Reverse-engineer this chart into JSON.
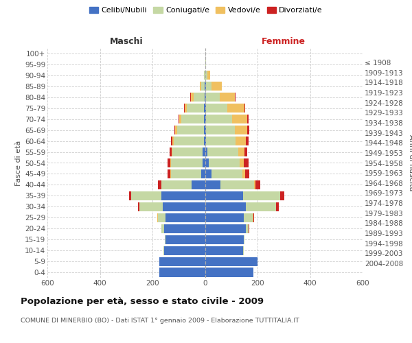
{
  "age_groups": [
    "0-4",
    "5-9",
    "10-14",
    "15-19",
    "20-24",
    "25-29",
    "30-34",
    "35-39",
    "40-44",
    "45-49",
    "50-54",
    "55-59",
    "60-64",
    "65-69",
    "70-74",
    "75-79",
    "80-84",
    "85-89",
    "90-94",
    "95-99",
    "100+"
  ],
  "birth_years": [
    "2004-2008",
    "1999-2003",
    "1994-1998",
    "1989-1993",
    "1984-1988",
    "1979-1983",
    "1974-1978",
    "1969-1973",
    "1964-1968",
    "1959-1963",
    "1954-1958",
    "1949-1953",
    "1944-1948",
    "1939-1943",
    "1934-1938",
    "1929-1933",
    "1924-1928",
    "1919-1923",
    "1914-1918",
    "1909-1913",
    "≤ 1908"
  ],
  "colors": {
    "celibi": "#4472c4",
    "coniugati": "#c5d8a4",
    "vedovi": "#f0c060",
    "divorziati": "#cc2222"
  },
  "males": {
    "celibi": [
      175,
      175,
      155,
      150,
      155,
      150,
      160,
      165,
      50,
      15,
      10,
      8,
      5,
      5,
      4,
      3,
      2,
      1,
      0,
      0,
      0
    ],
    "coniugati": [
      0,
      0,
      2,
      2,
      10,
      30,
      90,
      115,
      115,
      115,
      120,
      115,
      115,
      100,
      85,
      65,
      40,
      14,
      3,
      0,
      0
    ],
    "vedovi": [
      0,
      0,
      0,
      0,
      0,
      1,
      0,
      0,
      1,
      1,
      2,
      3,
      5,
      8,
      10,
      10,
      12,
      5,
      1,
      0,
      0
    ],
    "divorziati": [
      0,
      0,
      0,
      0,
      1,
      2,
      5,
      10,
      12,
      12,
      10,
      8,
      5,
      3,
      2,
      2,
      1,
      0,
      0,
      0,
      0
    ]
  },
  "females": {
    "celibi": [
      185,
      200,
      145,
      148,
      155,
      148,
      155,
      145,
      60,
      25,
      15,
      8,
      5,
      5,
      5,
      5,
      5,
      4,
      2,
      1,
      0
    ],
    "coniugati": [
      0,
      0,
      2,
      2,
      12,
      35,
      115,
      140,
      128,
      118,
      118,
      120,
      112,
      108,
      98,
      80,
      52,
      22,
      8,
      2,
      0
    ],
    "vedovi": [
      0,
      0,
      0,
      0,
      0,
      1,
      1,
      2,
      5,
      10,
      15,
      22,
      38,
      48,
      58,
      65,
      58,
      38,
      10,
      2,
      0
    ],
    "divorziati": [
      0,
      0,
      0,
      0,
      1,
      3,
      10,
      14,
      18,
      15,
      18,
      12,
      12,
      8,
      5,
      3,
      2,
      0,
      0,
      0,
      0
    ]
  },
  "title": "Popolazione per età, sesso e stato civile - 2009",
  "subtitle": "COMUNE DI MINERBIO (BO) - Dati ISTAT 1° gennaio 2009 - Elaborazione TUTTITALIA.IT",
  "xlabel_left": "Maschi",
  "xlabel_right": "Femmine",
  "ylabel_left": "Fasce di età",
  "ylabel_right": "Anni di nascita",
  "xlim": 600,
  "legend_labels": [
    "Celibi/Nubili",
    "Coniugati/e",
    "Vedovi/e",
    "Divorziati/e"
  ],
  "background_color": "#ffffff",
  "grid_color": "#cccccc",
  "maschi_color": "#333333",
  "femmine_color": "#cc2222"
}
